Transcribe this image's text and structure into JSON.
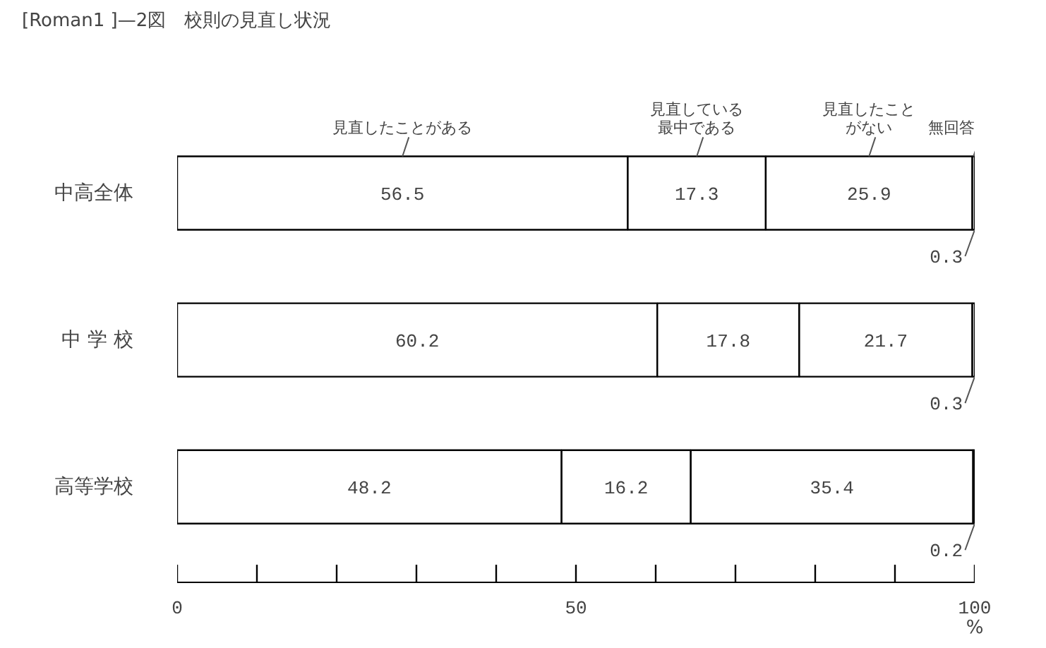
{
  "chart_data": {
    "type": "bar",
    "orientation": "horizontal",
    "stacked": true,
    "title": "[Roman1 ]—2図　校則の見直し状況",
    "xlabel": "%",
    "categories": [
      "中高全体",
      "中 学 校",
      "高等学校"
    ],
    "series": [
      {
        "name": "見直したことがある",
        "color": "#ffffff",
        "values": [
          56.5,
          60.2,
          48.2
        ]
      },
      {
        "name": "見直している最中である",
        "color": "#ffffff",
        "values": [
          17.3,
          17.8,
          16.2
        ]
      },
      {
        "name": "見直したことがない",
        "color": "#ffffff",
        "values": [
          25.9,
          21.7,
          35.4
        ]
      },
      {
        "name": "無回答",
        "color": "#ffffff",
        "values": [
          0.3,
          0.3,
          0.2
        ]
      }
    ],
    "xlim": [
      0,
      100
    ],
    "xticks": [
      0,
      {
        "value": 10,
        "label": null
      },
      {
        "value": 20,
        "label": null
      },
      {
        "value": 30,
        "label": null
      },
      {
        "value": 40,
        "label": null
      },
      50,
      {
        "value": 60,
        "label": null
      },
      {
        "value": 70,
        "label": null
      },
      {
        "value": 80,
        "label": null
      },
      {
        "value": 90,
        "label": null
      },
      100
    ],
    "data_labels": true,
    "grid": false,
    "legend": "top"
  }
}
